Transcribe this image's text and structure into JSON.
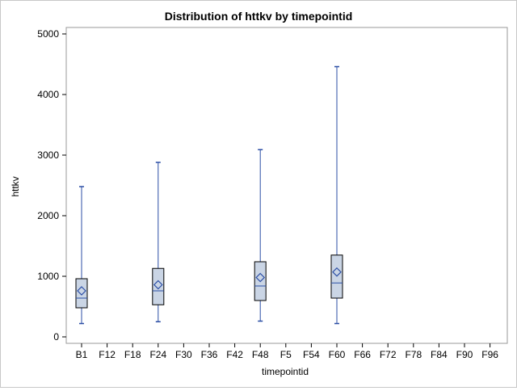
{
  "chart_data": {
    "type": "box",
    "title": "Distribution of httkv by timepointid",
    "xlabel": "timepointid",
    "ylabel": "httkv",
    "categories": [
      "B1",
      "F12",
      "F18",
      "F24",
      "F30",
      "F36",
      "F42",
      "F48",
      "F5",
      "F54",
      "F60",
      "F66",
      "F72",
      "F78",
      "F84",
      "F90",
      "F96"
    ],
    "ylim": [
      0,
      5000
    ],
    "yticks": [
      0,
      1000,
      2000,
      3000,
      4000,
      5000
    ],
    "boxes": [
      {
        "category": "B1",
        "min": 220,
        "q1": 480,
        "median": 640,
        "q3": 960,
        "max": 2480,
        "mean": 760
      },
      {
        "category": "F24",
        "min": 250,
        "q1": 530,
        "median": 760,
        "q3": 1130,
        "max": 2880,
        "mean": 860
      },
      {
        "category": "F48",
        "min": 260,
        "q1": 600,
        "median": 840,
        "q3": 1240,
        "max": 3090,
        "mean": 980
      },
      {
        "category": "F60",
        "min": 220,
        "q1": 640,
        "median": 890,
        "q3": 1350,
        "max": 4460,
        "mean": 1070
      }
    ],
    "grid": false,
    "colors": {
      "box_fill": "#cad5e5",
      "box_border": "#000000",
      "whisker": "#2b4ea5",
      "mean_marker": "#2b4ea5"
    }
  }
}
